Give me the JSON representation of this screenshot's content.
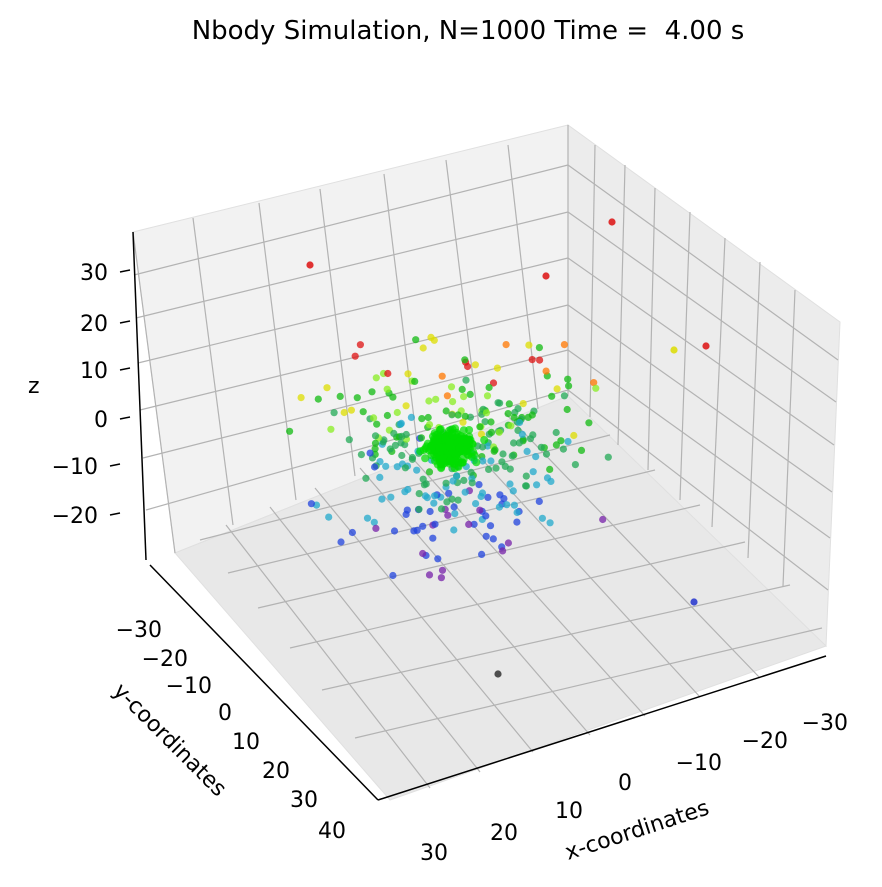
{
  "chart_data": {
    "type": "scatter",
    "projection": "3d",
    "title": "Nbody Simulation, N=1000 Time =  4.00 s",
    "xlabel": "x-coordinates",
    "ylabel": "y-coordinates",
    "zlabel": "z",
    "x_ticks": [
      30,
      20,
      10,
      0,
      -10,
      -20,
      -30
    ],
    "y_ticks": [
      -30,
      -20,
      -10,
      0,
      10,
      20,
      30,
      40
    ],
    "z_ticks": [
      30,
      20,
      10,
      0,
      -10,
      -20
    ],
    "grid": true,
    "color_scheme": "color by z (red high, green middle, blue/purple low)",
    "colors": {
      "pane": "#f2f2f2",
      "grid": "#b0b0b0",
      "cluster": "#00dd00"
    },
    "point_count_shown": "approx. 400 visible, dense central cluster near origin"
  }
}
